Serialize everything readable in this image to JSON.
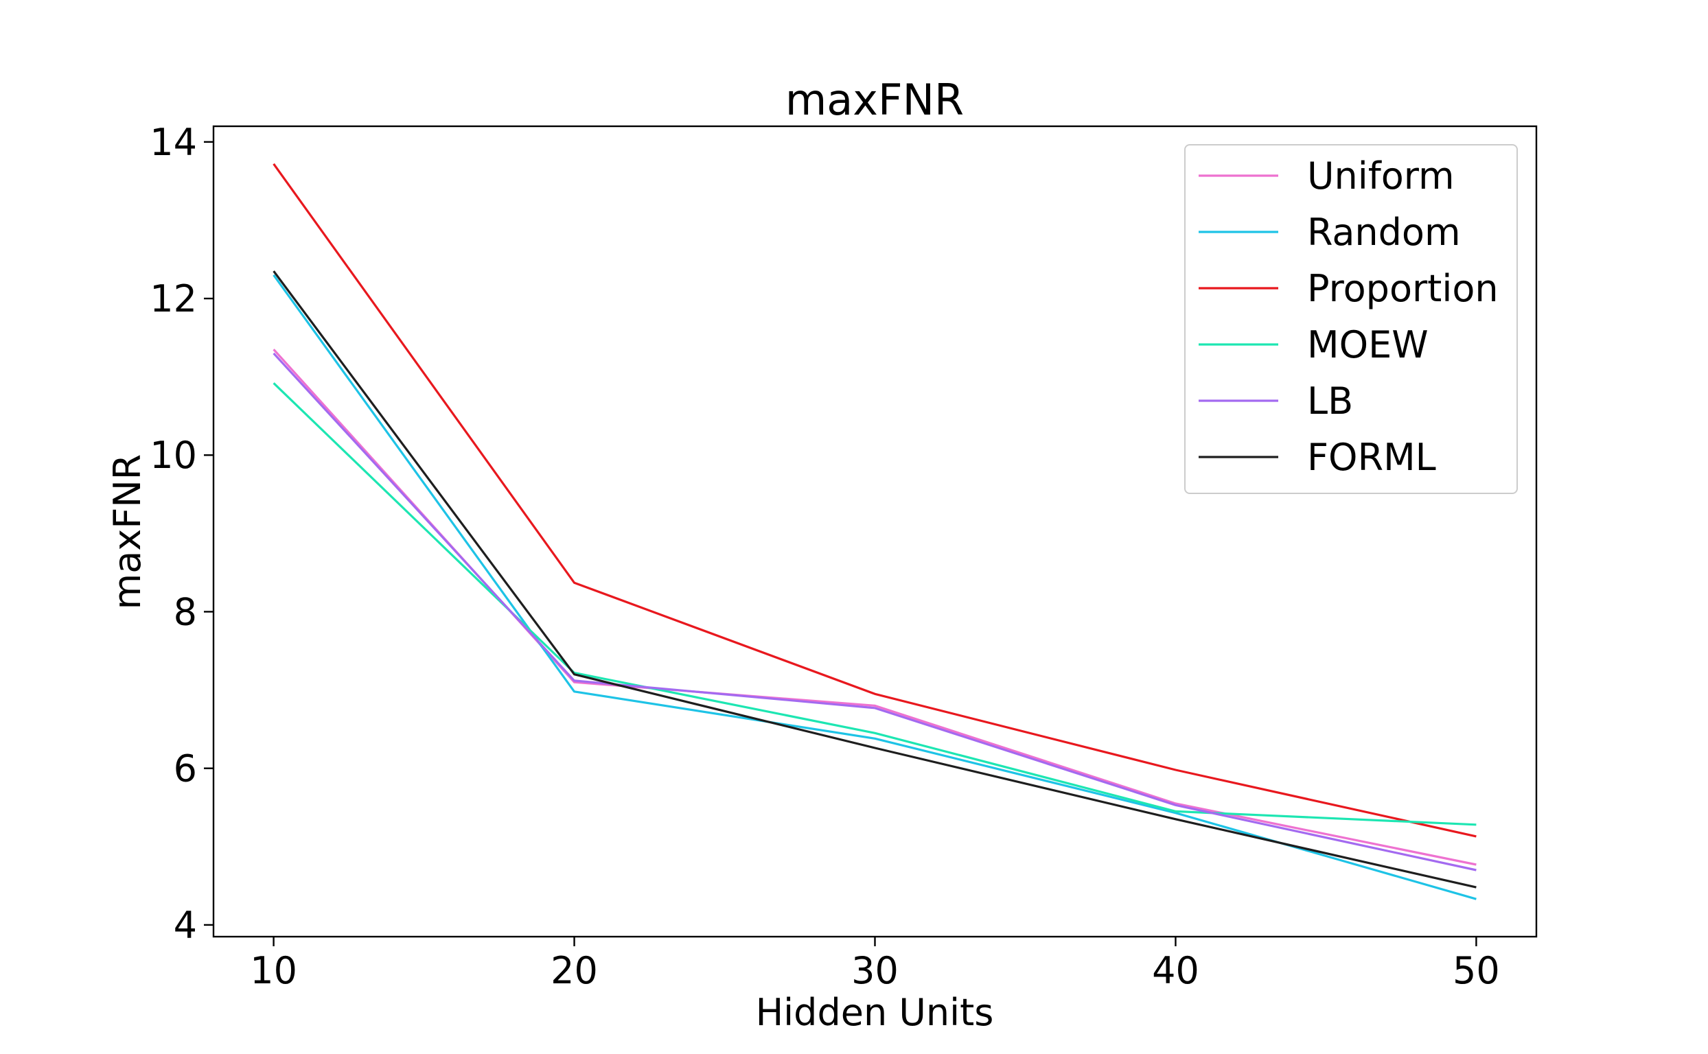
{
  "chart_data": {
    "type": "line",
    "title": "maxFNR",
    "xlabel": "Hidden Units",
    "ylabel": "maxFNR",
    "x": [
      10,
      20,
      30,
      40,
      50
    ],
    "xticks": [
      "10",
      "20",
      "30",
      "40",
      "50"
    ],
    "yticks": [
      "4",
      "6",
      "8",
      "10",
      "12",
      "14"
    ],
    "xlim": [
      8,
      52
    ],
    "ylim": [
      3.85,
      14.2
    ],
    "grid": false,
    "legend_position": "top-right",
    "series": [
      {
        "name": "Uniform",
        "color": "#ee72d0",
        "values": [
          11.35,
          7.1,
          6.8,
          5.55,
          4.77
        ]
      },
      {
        "name": "Random",
        "color": "#1ec3e6",
        "values": [
          12.3,
          6.98,
          6.38,
          5.43,
          4.33
        ]
      },
      {
        "name": "Proportion",
        "color": "#e8181e",
        "values": [
          13.72,
          8.37,
          6.95,
          5.98,
          5.13
        ]
      },
      {
        "name": "MOEW",
        "color": "#1de6b2",
        "values": [
          10.92,
          7.22,
          6.45,
          5.45,
          5.28
        ]
      },
      {
        "name": "LB",
        "color": "#a36af0",
        "values": [
          11.3,
          7.12,
          6.77,
          5.53,
          4.7
        ]
      },
      {
        "name": "FORML",
        "color": "#1e1e1e",
        "values": [
          12.35,
          7.2,
          6.26,
          5.35,
          4.48
        ]
      }
    ]
  }
}
